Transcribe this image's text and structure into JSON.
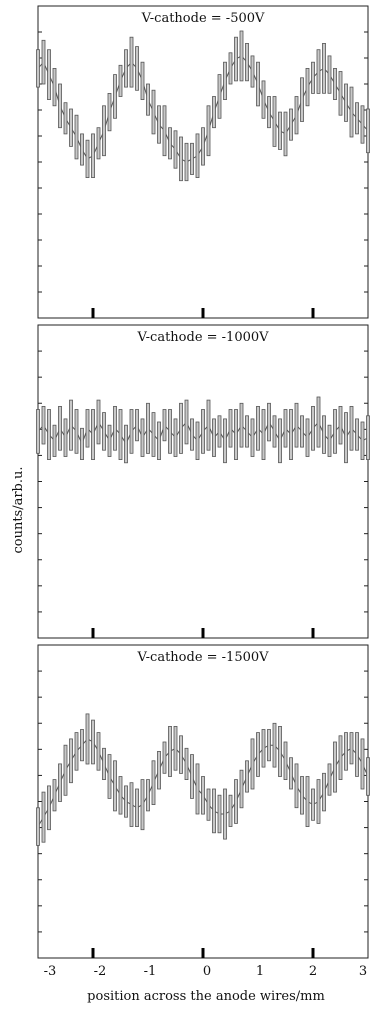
{
  "chart_data": [
    {
      "type": "line",
      "title": "V-cathode = -500V",
      "xlim": [
        -3,
        3
      ],
      "ylim": [
        0,
        1
      ],
      "grid": false,
      "x": [
        -3.0,
        -2.9,
        -2.8,
        -2.7,
        -2.6,
        -2.5,
        -2.4,
        -2.3,
        -2.2,
        -2.1,
        -2.0,
        -1.9,
        -1.8,
        -1.7,
        -1.6,
        -1.5,
        -1.4,
        -1.3,
        -1.2,
        -1.1,
        -1.0,
        -0.9,
        -0.8,
        -0.7,
        -0.6,
        -0.5,
        -0.4,
        -0.3,
        -0.2,
        -0.1,
        0.0,
        0.1,
        0.2,
        0.3,
        0.4,
        0.5,
        0.6,
        0.7,
        0.8,
        0.9,
        1.0,
        1.1,
        1.2,
        1.3,
        1.4,
        1.5,
        1.6,
        1.7,
        1.8,
        1.9,
        2.0,
        2.1,
        2.2,
        2.3,
        2.4,
        2.5,
        2.6,
        2.7,
        2.8,
        2.9,
        3.0
      ],
      "y": [
        0.8,
        0.82,
        0.78,
        0.74,
        0.68,
        0.64,
        0.61,
        0.58,
        0.54,
        0.51,
        0.52,
        0.56,
        0.6,
        0.66,
        0.71,
        0.76,
        0.8,
        0.82,
        0.8,
        0.76,
        0.7,
        0.66,
        0.62,
        0.6,
        0.56,
        0.54,
        0.51,
        0.5,
        0.51,
        0.52,
        0.55,
        0.6,
        0.66,
        0.71,
        0.76,
        0.8,
        0.83,
        0.84,
        0.82,
        0.79,
        0.75,
        0.7,
        0.66,
        0.63,
        0.6,
        0.59,
        0.62,
        0.65,
        0.7,
        0.74,
        0.77,
        0.79,
        0.8,
        0.78,
        0.75,
        0.72,
        0.69,
        0.66,
        0.64,
        0.62,
        0.6
      ],
      "spread": [
        0.06,
        0.07,
        0.08,
        0.06,
        0.07,
        0.05,
        0.06,
        0.07,
        0.05,
        0.06,
        0.07,
        0.05,
        0.08,
        0.06,
        0.07,
        0.05,
        0.06,
        0.08,
        0.07,
        0.06,
        0.05,
        0.07,
        0.06,
        0.08,
        0.05,
        0.06,
        0.07,
        0.06,
        0.05,
        0.07,
        0.06,
        0.08,
        0.05,
        0.07,
        0.06,
        0.05,
        0.07,
        0.08,
        0.06,
        0.05,
        0.07,
        0.06,
        0.05,
        0.08,
        0.06,
        0.07,
        0.05,
        0.06,
        0.07,
        0.06,
        0.05,
        0.07,
        0.08,
        0.06,
        0.05,
        0.07,
        0.06,
        0.08,
        0.05,
        0.06,
        0.07
      ],
      "marker_x": [
        -2,
        0,
        2
      ]
    },
    {
      "type": "line",
      "title": "V-cathode = -1000V",
      "xlim": [
        -3,
        3
      ],
      "ylim": [
        0,
        1
      ],
      "grid": false,
      "x": [
        -3.0,
        -2.9,
        -2.8,
        -2.7,
        -2.6,
        -2.5,
        -2.4,
        -2.3,
        -2.2,
        -2.1,
        -2.0,
        -1.9,
        -1.8,
        -1.7,
        -1.6,
        -1.5,
        -1.4,
        -1.3,
        -1.2,
        -1.1,
        -1.0,
        -0.9,
        -0.8,
        -0.7,
        -0.6,
        -0.5,
        -0.4,
        -0.3,
        -0.2,
        -0.1,
        0.0,
        0.1,
        0.2,
        0.3,
        0.4,
        0.5,
        0.6,
        0.7,
        0.8,
        0.9,
        1.0,
        1.1,
        1.2,
        1.3,
        1.4,
        1.5,
        1.6,
        1.7,
        1.8,
        1.9,
        2.0,
        2.1,
        2.2,
        2.3,
        2.4,
        2.5,
        2.6,
        2.7,
        2.8,
        2.9,
        3.0
      ],
      "y": [
        0.66,
        0.68,
        0.65,
        0.63,
        0.67,
        0.64,
        0.68,
        0.66,
        0.62,
        0.67,
        0.65,
        0.69,
        0.66,
        0.63,
        0.67,
        0.65,
        0.62,
        0.66,
        0.68,
        0.64,
        0.67,
        0.65,
        0.63,
        0.68,
        0.66,
        0.64,
        0.67,
        0.69,
        0.65,
        0.63,
        0.66,
        0.68,
        0.64,
        0.66,
        0.63,
        0.67,
        0.65,
        0.68,
        0.66,
        0.64,
        0.67,
        0.65,
        0.69,
        0.66,
        0.63,
        0.67,
        0.65,
        0.68,
        0.66,
        0.64,
        0.67,
        0.69,
        0.65,
        0.63,
        0.66,
        0.68,
        0.64,
        0.67,
        0.65,
        0.63,
        0.64
      ],
      "spread": [
        0.07,
        0.06,
        0.08,
        0.05,
        0.07,
        0.06,
        0.08,
        0.07,
        0.05,
        0.06,
        0.08,
        0.07,
        0.06,
        0.05,
        0.07,
        0.08,
        0.06,
        0.07,
        0.05,
        0.06,
        0.08,
        0.07,
        0.06,
        0.05,
        0.07,
        0.06,
        0.08,
        0.07,
        0.05,
        0.06,
        0.07,
        0.08,
        0.06,
        0.05,
        0.07,
        0.06,
        0.08,
        0.07,
        0.05,
        0.06,
        0.07,
        0.08,
        0.06,
        0.05,
        0.07,
        0.06,
        0.08,
        0.07,
        0.05,
        0.06,
        0.07,
        0.08,
        0.06,
        0.05,
        0.07,
        0.06,
        0.08,
        0.07,
        0.05,
        0.06,
        0.07
      ],
      "marker_x": [
        -2,
        0,
        2
      ]
    },
    {
      "type": "line",
      "title": "V-cathode = -1500V",
      "xlim": [
        -3,
        3
      ],
      "ylim": [
        0,
        1
      ],
      "grid": false,
      "x": [
        -3.0,
        -2.9,
        -2.8,
        -2.7,
        -2.6,
        -2.5,
        -2.4,
        -2.3,
        -2.2,
        -2.1,
        -2.0,
        -1.9,
        -1.8,
        -1.7,
        -1.6,
        -1.5,
        -1.4,
        -1.3,
        -1.2,
        -1.1,
        -1.0,
        -0.9,
        -0.8,
        -0.7,
        -0.6,
        -0.5,
        -0.4,
        -0.3,
        -0.2,
        -0.1,
        0.0,
        0.1,
        0.2,
        0.3,
        0.4,
        0.5,
        0.6,
        0.7,
        0.8,
        0.9,
        1.0,
        1.1,
        1.2,
        1.3,
        1.4,
        1.5,
        1.6,
        1.7,
        1.8,
        1.9,
        2.0,
        2.1,
        2.2,
        2.3,
        2.4,
        2.5,
        2.6,
        2.7,
        2.8,
        2.9,
        3.0
      ],
      "y": [
        0.42,
        0.45,
        0.48,
        0.52,
        0.56,
        0.6,
        0.63,
        0.66,
        0.68,
        0.7,
        0.69,
        0.66,
        0.62,
        0.58,
        0.55,
        0.52,
        0.5,
        0.49,
        0.48,
        0.49,
        0.52,
        0.56,
        0.6,
        0.64,
        0.66,
        0.67,
        0.65,
        0.62,
        0.58,
        0.54,
        0.52,
        0.49,
        0.47,
        0.46,
        0.46,
        0.47,
        0.5,
        0.54,
        0.58,
        0.62,
        0.65,
        0.67,
        0.68,
        0.68,
        0.66,
        0.63,
        0.59,
        0.55,
        0.52,
        0.5,
        0.49,
        0.5,
        0.53,
        0.57,
        0.61,
        0.64,
        0.66,
        0.67,
        0.65,
        0.62,
        0.58
      ],
      "spread": [
        0.06,
        0.08,
        0.07,
        0.05,
        0.06,
        0.08,
        0.07,
        0.06,
        0.05,
        0.08,
        0.07,
        0.06,
        0.05,
        0.07,
        0.08,
        0.06,
        0.05,
        0.07,
        0.06,
        0.08,
        0.05,
        0.07,
        0.06,
        0.05,
        0.08,
        0.07,
        0.06,
        0.05,
        0.07,
        0.08,
        0.06,
        0.05,
        0.07,
        0.06,
        0.08,
        0.05,
        0.07,
        0.06,
        0.05,
        0.08,
        0.07,
        0.06,
        0.05,
        0.07,
        0.08,
        0.06,
        0.05,
        0.07,
        0.06,
        0.08,
        0.05,
        0.07,
        0.06,
        0.05,
        0.08,
        0.07,
        0.06,
        0.05,
        0.07,
        0.08,
        0.06
      ],
      "marker_x": [
        -2,
        0,
        2
      ]
    }
  ],
  "axes": {
    "ylabel": "counts/arb.u.",
    "xlabel": "position across the anode wires/mm",
    "xticks": [
      "-3",
      "-2",
      "-1",
      "0",
      "1",
      "2",
      "3"
    ]
  },
  "colors": {
    "bar_fill": "#c8c8c8",
    "bar_stroke": "#555555",
    "axis": "#222222",
    "marker": "#000000"
  }
}
